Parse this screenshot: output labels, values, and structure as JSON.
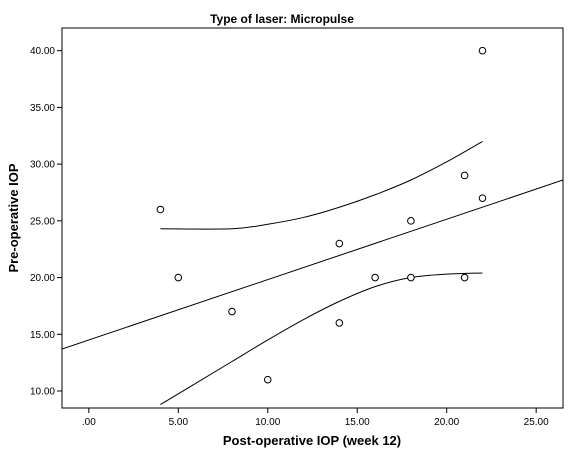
{
  "chart_data": {
    "type": "scatter",
    "title": "Type of laser: Micropulse",
    "xlabel": "Post-operative IOP (week 12)",
    "ylabel": "Pre-operative IOP",
    "xlim": [
      -1.5,
      26.5
    ],
    "ylim": [
      8.5,
      42.0
    ],
    "x_ticks": [
      0,
      5,
      10,
      15,
      20,
      25
    ],
    "x_tick_labels": [
      ".00",
      "5.00",
      "10.00",
      "15.00",
      "20.00",
      "25.00"
    ],
    "y_ticks": [
      10,
      15,
      20,
      25,
      30,
      35,
      40
    ],
    "y_tick_labels": [
      "10.00",
      "15.00",
      "20.00",
      "25.00",
      "30.00",
      "35.00",
      "40.00"
    ],
    "grid": false,
    "points": [
      {
        "x": 4,
        "y": 26
      },
      {
        "x": 5,
        "y": 20
      },
      {
        "x": 8,
        "y": 17
      },
      {
        "x": 10,
        "y": 11
      },
      {
        "x": 14,
        "y": 23
      },
      {
        "x": 14,
        "y": 16
      },
      {
        "x": 16,
        "y": 20
      },
      {
        "x": 18,
        "y": 25
      },
      {
        "x": 18,
        "y": 20
      },
      {
        "x": 21,
        "y": 29
      },
      {
        "x": 21,
        "y": 20
      },
      {
        "x": 22,
        "y": 40
      },
      {
        "x": 22,
        "y": 27
      }
    ],
    "fit_line": {
      "x": [
        -1.5,
        26.5
      ],
      "y": [
        13.7,
        28.6
      ]
    },
    "ci_upper": {
      "x": [
        4,
        8,
        10,
        12,
        14,
        16,
        18,
        20,
        22
      ],
      "y": [
        24.3,
        24.3,
        24.7,
        25.3,
        26.2,
        27.3,
        28.6,
        30.2,
        32.0
      ]
    },
    "ci_lower": {
      "x": [
        4,
        6,
        8,
        10,
        12,
        14,
        16,
        18,
        20,
        22
      ],
      "y": [
        8.8,
        10.7,
        12.6,
        14.5,
        16.3,
        17.9,
        19.2,
        20.0,
        20.3,
        20.4
      ]
    }
  }
}
